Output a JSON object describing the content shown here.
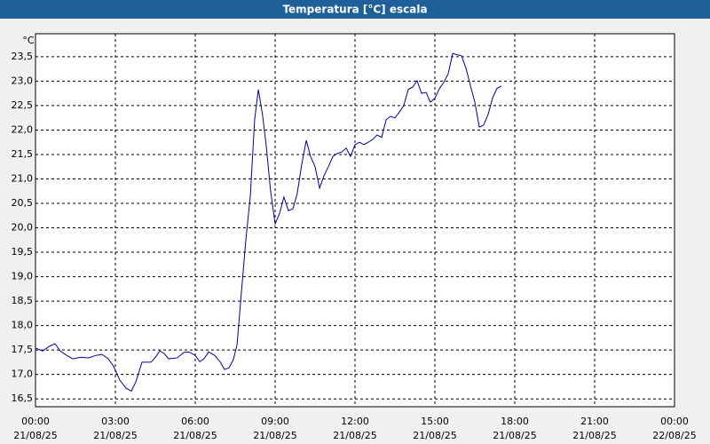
{
  "chart_data": {
    "type": "line",
    "title": "Temperatura [°C] escala",
    "y_label": "°C",
    "x": [
      0,
      0.27,
      0.5,
      0.73,
      0.93,
      1.17,
      1.4,
      1.67,
      2.0,
      2.27,
      2.5,
      2.73,
      2.93,
      3.17,
      3.4,
      3.6,
      3.77,
      4.0,
      4.17,
      4.33,
      4.5,
      4.67,
      4.83,
      5.0,
      5.33,
      5.57,
      5.77,
      6.0,
      6.17,
      6.33,
      6.5,
      6.73,
      6.93,
      7.1,
      7.27,
      7.43,
      7.57,
      7.73,
      7.9,
      8.07,
      8.23,
      8.37,
      8.53,
      8.67,
      8.83,
      9.0,
      9.17,
      9.33,
      9.5,
      9.67,
      9.83,
      10.0,
      10.17,
      10.33,
      10.5,
      10.67,
      10.83,
      11.0,
      11.17,
      11.33,
      11.5,
      11.67,
      11.83,
      12.0,
      12.17,
      12.33,
      12.5,
      12.67,
      12.83,
      13.0,
      13.17,
      13.33,
      13.5,
      13.67,
      13.83,
      14.0,
      14.17,
      14.33,
      14.5,
      14.67,
      14.83,
      15.0,
      15.17,
      15.33,
      15.5,
      15.67,
      15.83,
      16.0,
      16.17,
      16.33,
      16.5,
      16.67,
      16.83,
      17.0,
      17.17,
      17.33,
      17.5
    ],
    "series": [
      {
        "name": "Temperatura",
        "color": "#0000a0",
        "values": [
          17.54,
          17.48,
          17.57,
          17.63,
          17.48,
          17.39,
          17.32,
          17.35,
          17.34,
          17.39,
          17.41,
          17.32,
          17.17,
          16.88,
          16.72,
          16.66,
          16.85,
          17.25,
          17.25,
          17.25,
          17.35,
          17.48,
          17.43,
          17.32,
          17.34,
          17.45,
          17.46,
          17.39,
          17.26,
          17.32,
          17.46,
          17.39,
          17.26,
          17.1,
          17.14,
          17.3,
          17.61,
          18.66,
          19.75,
          20.66,
          22.21,
          22.83,
          22.3,
          21.66,
          20.75,
          20.08,
          20.3,
          20.63,
          20.35,
          20.39,
          20.7,
          21.3,
          21.79,
          21.46,
          21.25,
          20.81,
          21.06,
          21.25,
          21.46,
          21.52,
          21.55,
          21.63,
          21.46,
          21.7,
          21.75,
          21.7,
          21.75,
          21.81,
          21.9,
          21.85,
          22.21,
          22.28,
          22.25,
          22.37,
          22.5,
          22.83,
          22.88,
          23.01,
          22.75,
          22.77,
          22.57,
          22.65,
          22.85,
          22.97,
          23.15,
          23.57,
          23.54,
          23.52,
          23.26,
          22.92,
          22.57,
          22.06,
          22.1,
          22.32,
          22.66,
          22.85,
          22.9
        ]
      }
    ],
    "xlim": [
      0,
      24
    ],
    "xticks": [
      {
        "value": 0,
        "label": "00:00"
      },
      {
        "value": 3,
        "label": "03:00"
      },
      {
        "value": 6,
        "label": "06:00"
      },
      {
        "value": 9,
        "label": "09:00"
      },
      {
        "value": 12,
        "label": "12:00"
      },
      {
        "value": 15,
        "label": "15:00"
      },
      {
        "value": 18,
        "label": "18:00"
      },
      {
        "value": 21,
        "label": "21:00"
      },
      {
        "value": 24,
        "label": "00:00"
      }
    ],
    "xtick_dates": [
      "21/08/25",
      "21/08/25",
      "21/08/25",
      "21/08/25",
      "21/08/25",
      "21/08/25",
      "21/08/25",
      "21/08/25",
      "22/08/25"
    ],
    "ylim": [
      16.34,
      23.97
    ],
    "yticks": [
      {
        "value": 16.5,
        "label": "16,5"
      },
      {
        "value": 17,
        "label": "17,0"
      },
      {
        "value": 17.5,
        "label": "17,5"
      },
      {
        "value": 18,
        "label": "18,0"
      },
      {
        "value": 18.5,
        "label": "18,5"
      },
      {
        "value": 19,
        "label": "19,0"
      },
      {
        "value": 19.5,
        "label": "19,5"
      },
      {
        "value": 20,
        "label": "20,0"
      },
      {
        "value": 20.5,
        "label": "20,5"
      },
      {
        "value": 21,
        "label": "21,0"
      },
      {
        "value": 21.5,
        "label": "21,5"
      },
      {
        "value": 22,
        "label": "22,0"
      },
      {
        "value": 22.5,
        "label": "22,5"
      },
      {
        "value": 23,
        "label": "23,0"
      },
      {
        "value": 23.5,
        "label": "23,5"
      }
    ],
    "grid": true
  }
}
